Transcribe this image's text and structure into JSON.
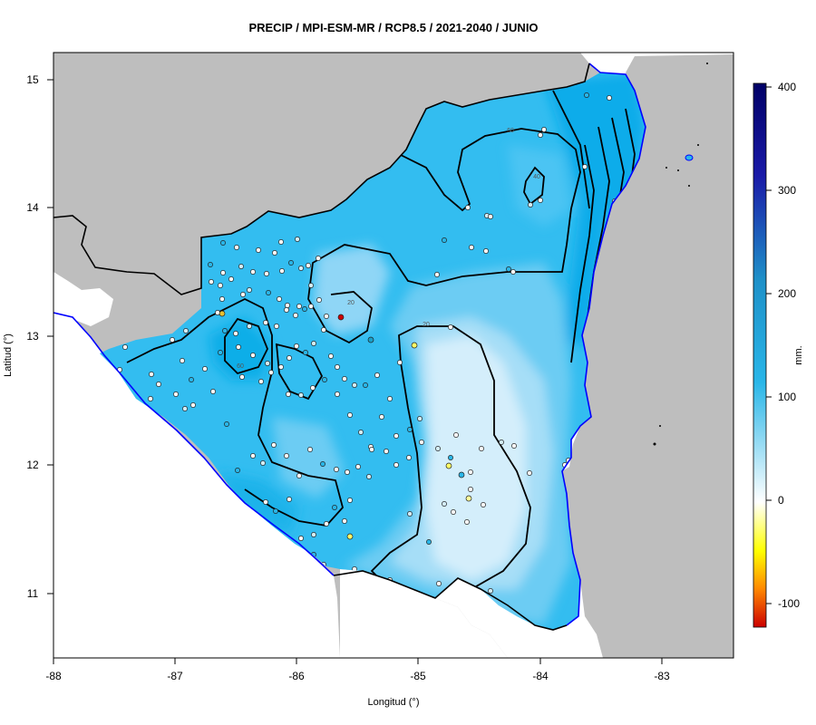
{
  "title": "PRECIP / MPI-ESM-MR / RCP8.5 / 2021-2040 / JUNIO",
  "xlabel": "Longitud (°)",
  "ylabel": "Latitud (°)",
  "colorbar": {
    "label": "mm.",
    "ticks": [
      "400",
      "300",
      "200",
      "100",
      "0",
      "-100"
    ],
    "range": [
      -120,
      405
    ],
    "colors": {
      "neg_low": "#cc0000",
      "neg_mid": "#ff8800",
      "neg_high": "#ffff00",
      "zero": "#ffffff",
      "pos_low": "#29b6e8",
      "pos_mid": "#1a237e",
      "pos_high": "#000066"
    }
  },
  "x_ticks": [
    "-88",
    "-87",
    "-86",
    "-85",
    "-84",
    "-83"
  ],
  "y_ticks": [
    "15",
    "14",
    "13",
    "12",
    "11"
  ],
  "contour_labels": [
    "60",
    "40",
    "20",
    "20",
    "60"
  ],
  "colors": {
    "land_out": "#bebebe",
    "coast": "#0000ff",
    "border": "#000000",
    "field_deep": "#0bacea",
    "field_mid": "#33bdf0",
    "field_light": "#8fd6f6",
    "field_pale": "#d4eefb"
  }
}
